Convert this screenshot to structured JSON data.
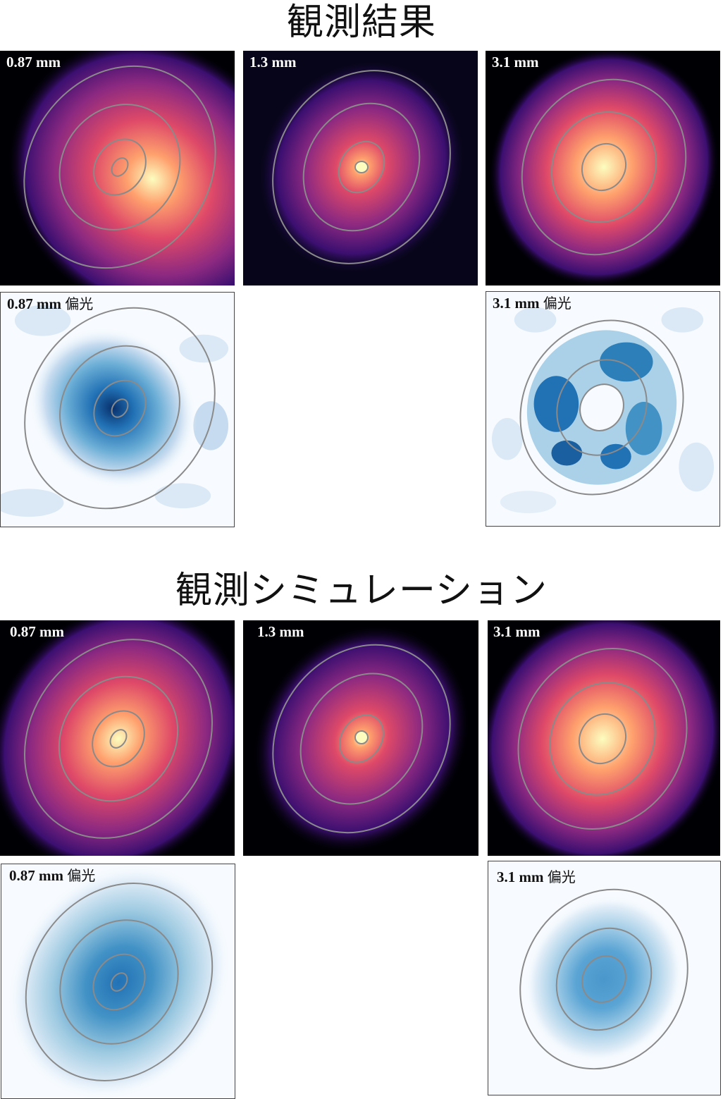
{
  "sections": {
    "observed": {
      "title": "観測結果"
    },
    "simulated": {
      "title": "観測シミュレーション"
    }
  },
  "panels": {
    "obs_087": {
      "band": "0.87 mm",
      "suffix": ""
    },
    "obs_13": {
      "band": "1.3 mm",
      "suffix": ""
    },
    "obs_31": {
      "band": "3.1 mm",
      "suffix": ""
    },
    "obs_087_pol": {
      "band": "0.87 mm",
      "suffix": "偏光"
    },
    "obs_31_pol": {
      "band": "3.1 mm",
      "suffix": "偏光"
    },
    "sim_087": {
      "band": "0.87 mm",
      "suffix": ""
    },
    "sim_13": {
      "band": "1.3 mm",
      "suffix": ""
    },
    "sim_31": {
      "band": "3.1 mm",
      "suffix": ""
    },
    "sim_087_pol": {
      "band": "0.87 mm",
      "suffix": "偏光"
    },
    "sim_31_pol": {
      "band": "3.1 mm",
      "suffix": "偏光"
    }
  },
  "colors": {
    "intensity_map": [
      "#fcfdbf",
      "#fe9f6d",
      "#de4968",
      "#8c2981",
      "#3b0f70",
      "#000004"
    ],
    "polarization_map": [
      "#08306b",
      "#2171b5",
      "#6baed6",
      "#c6dbef",
      "#f7fbff"
    ],
    "contour": "#8a8a8a"
  }
}
